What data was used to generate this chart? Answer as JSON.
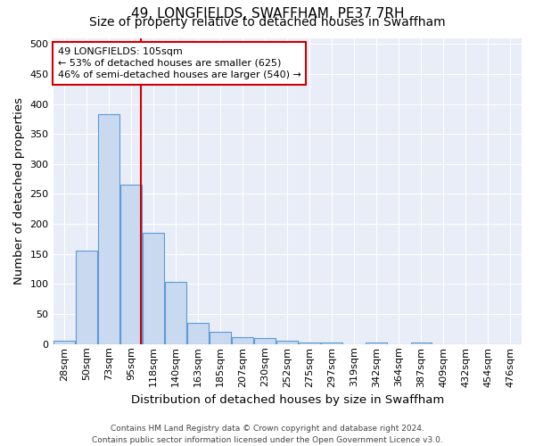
{
  "title": "49, LONGFIELDS, SWAFFHAM, PE37 7RH",
  "subtitle": "Size of property relative to detached houses in Swaffham",
  "xlabel": "Distribution of detached houses by size in Swaffham",
  "ylabel": "Number of detached properties",
  "footer_line1": "Contains HM Land Registry data © Crown copyright and database right 2024.",
  "footer_line2": "Contains public sector information licensed under the Open Government Licence v3.0.",
  "categories": [
    "28sqm",
    "50sqm",
    "73sqm",
    "95sqm",
    "118sqm",
    "140sqm",
    "163sqm",
    "185sqm",
    "207sqm",
    "230sqm",
    "252sqm",
    "275sqm",
    "297sqm",
    "319sqm",
    "342sqm",
    "364sqm",
    "387sqm",
    "409sqm",
    "432sqm",
    "454sqm",
    "476sqm"
  ],
  "values": [
    5,
    155,
    383,
    265,
    185,
    103,
    36,
    21,
    12,
    10,
    5,
    3,
    3,
    0,
    3,
    0,
    3,
    0,
    0,
    0,
    0
  ],
  "bar_color": "#c9d9f0",
  "bar_edge_color": "#5b9bd5",
  "vline_color": "#cc0000",
  "annotation_text": "49 LONGFIELDS: 105sqm\n← 53% of detached houses are smaller (625)\n46% of semi-detached houses are larger (540) →",
  "annotation_box_color": "#ffffff",
  "annotation_box_edge_color": "#cc0000",
  "ylim": [
    0,
    510
  ],
  "yticks": [
    0,
    50,
    100,
    150,
    200,
    250,
    300,
    350,
    400,
    450,
    500
  ],
  "plot_bg_color": "#e8edf8",
  "fig_bg_color": "#ffffff",
  "grid_color": "#ffffff",
  "title_fontsize": 11,
  "subtitle_fontsize": 10,
  "axis_label_fontsize": 9.5,
  "tick_fontsize": 8,
  "footer_fontsize": 6.5,
  "annotation_fontsize": 8
}
